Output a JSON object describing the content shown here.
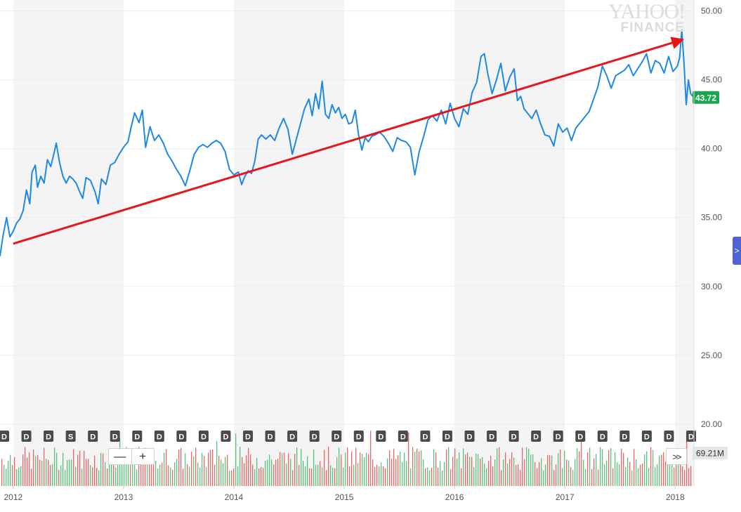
{
  "watermark": {
    "line1": "YAHOO!",
    "line2": "FINANCE"
  },
  "controls": {
    "zoom_out": "—",
    "zoom_in": "+",
    "scroll_right": ">>",
    "side_tab": ">"
  },
  "colors": {
    "price_line": "#1e88e5",
    "trend_arrow": "#e8161a",
    "last_price_badge": "#1ca550",
    "volume_up": "#3fb965",
    "volume_down": "#e84b4b",
    "event_marker": "#4a4a4a",
    "shade": "#f4f4f4",
    "grid": "#ebebeb",
    "axis_text": "#555555"
  },
  "chart_data": {
    "type": "line",
    "title": "",
    "xlabel": "",
    "ylabel": "",
    "xlim": [
      2011.88,
      2018.17
    ],
    "ylim": [
      15.5,
      50.8
    ],
    "x_ticks": [
      2012,
      2013,
      2014,
      2015,
      2016,
      2017,
      2018
    ],
    "x_tick_labels": [
      "2012",
      "2013",
      "2014",
      "2015",
      "2016",
      "2017",
      "2018"
    ],
    "y_ticks": [
      20,
      25,
      30,
      35,
      40,
      45,
      50
    ],
    "y_tick_labels": [
      "20.00",
      "25.00",
      "30.00",
      "35.00",
      "40.00",
      "45.00",
      "50.00"
    ],
    "grid": "horizontal",
    "series": [
      {
        "points": [
          [
            2011.88,
            32.2
          ],
          [
            2011.91,
            33.8
          ],
          [
            2011.94,
            35.0
          ],
          [
            2011.97,
            33.6
          ],
          [
            2012.0,
            34.0
          ],
          [
            2012.03,
            34.6
          ],
          [
            2012.06,
            34.9
          ],
          [
            2012.09,
            35.5
          ],
          [
            2012.12,
            37.0
          ],
          [
            2012.15,
            36.0
          ],
          [
            2012.17,
            38.3
          ],
          [
            2012.2,
            38.8
          ],
          [
            2012.22,
            37.2
          ],
          [
            2012.25,
            38.0
          ],
          [
            2012.28,
            37.5
          ],
          [
            2012.31,
            39.2
          ],
          [
            2012.34,
            38.7
          ],
          [
            2012.37,
            39.7
          ],
          [
            2012.39,
            40.4
          ],
          [
            2012.42,
            39.0
          ],
          [
            2012.45,
            38.0
          ],
          [
            2012.48,
            37.5
          ],
          [
            2012.51,
            38.0
          ],
          [
            2012.54,
            37.8
          ],
          [
            2012.57,
            37.5
          ],
          [
            2012.6,
            36.9
          ],
          [
            2012.63,
            36.4
          ],
          [
            2012.66,
            37.9
          ],
          [
            2012.7,
            37.7
          ],
          [
            2012.74,
            36.9
          ],
          [
            2012.77,
            36.0
          ],
          [
            2012.8,
            37.8
          ],
          [
            2012.84,
            37.4
          ],
          [
            2012.88,
            38.8
          ],
          [
            2012.92,
            39.0
          ],
          [
            2012.96,
            39.6
          ],
          [
            2013.0,
            40.1
          ],
          [
            2013.04,
            40.5
          ],
          [
            2013.07,
            41.6
          ],
          [
            2013.1,
            42.6
          ],
          [
            2013.14,
            41.9
          ],
          [
            2013.17,
            42.8
          ],
          [
            2013.2,
            40.1
          ],
          [
            2013.24,
            41.6
          ],
          [
            2013.28,
            40.6
          ],
          [
            2013.32,
            41.0
          ],
          [
            2013.36,
            40.4
          ],
          [
            2013.4,
            39.6
          ],
          [
            2013.44,
            39.1
          ],
          [
            2013.48,
            38.5
          ],
          [
            2013.52,
            38.0
          ],
          [
            2013.56,
            37.3
          ],
          [
            2013.6,
            38.4
          ],
          [
            2013.64,
            39.6
          ],
          [
            2013.68,
            40.1
          ],
          [
            2013.72,
            40.3
          ],
          [
            2013.76,
            40.1
          ],
          [
            2013.8,
            40.4
          ],
          [
            2013.84,
            40.6
          ],
          [
            2013.88,
            40.4
          ],
          [
            2013.92,
            39.8
          ],
          [
            2013.96,
            38.5
          ],
          [
            2014.0,
            38.1
          ],
          [
            2014.04,
            38.3
          ],
          [
            2014.07,
            37.4
          ],
          [
            2014.1,
            38.0
          ],
          [
            2014.13,
            38.4
          ],
          [
            2014.16,
            38.2
          ],
          [
            2014.19,
            39.1
          ],
          [
            2014.22,
            40.7
          ],
          [
            2014.25,
            41.0
          ],
          [
            2014.29,
            40.7
          ],
          [
            2014.33,
            41.0
          ],
          [
            2014.37,
            40.6
          ],
          [
            2014.41,
            41.5
          ],
          [
            2014.45,
            42.2
          ],
          [
            2014.49,
            41.4
          ],
          [
            2014.53,
            39.6
          ],
          [
            2014.57,
            40.8
          ],
          [
            2014.61,
            42.0
          ],
          [
            2014.64,
            42.9
          ],
          [
            2014.68,
            43.6
          ],
          [
            2014.71,
            42.4
          ],
          [
            2014.74,
            44.0
          ],
          [
            2014.77,
            42.9
          ],
          [
            2014.8,
            44.9
          ],
          [
            2014.83,
            42.5
          ],
          [
            2014.86,
            42.2
          ],
          [
            2014.89,
            43.2
          ],
          [
            2014.92,
            42.6
          ],
          [
            2014.95,
            43.0
          ],
          [
            2014.98,
            42.2
          ],
          [
            2015.01,
            42.5
          ],
          [
            2015.04,
            41.8
          ],
          [
            2015.07,
            41.9
          ],
          [
            2015.1,
            42.8
          ],
          [
            2015.13,
            41.0
          ],
          [
            2015.16,
            39.9
          ],
          [
            2015.19,
            40.8
          ],
          [
            2015.22,
            40.5
          ],
          [
            2015.25,
            40.9
          ],
          [
            2015.28,
            41.0
          ],
          [
            2015.32,
            41.2
          ],
          [
            2015.36,
            40.9
          ],
          [
            2015.4,
            40.4
          ],
          [
            2015.44,
            39.8
          ],
          [
            2015.48,
            40.8
          ],
          [
            2015.52,
            40.6
          ],
          [
            2015.56,
            40.5
          ],
          [
            2015.6,
            40.1
          ],
          [
            2015.64,
            38.1
          ],
          [
            2015.68,
            39.8
          ],
          [
            2015.72,
            40.9
          ],
          [
            2015.76,
            42.1
          ],
          [
            2015.8,
            42.4
          ],
          [
            2015.84,
            42.0
          ],
          [
            2015.88,
            42.8
          ],
          [
            2015.92,
            41.8
          ],
          [
            2015.96,
            43.3
          ],
          [
            2016.0,
            42.2
          ],
          [
            2016.04,
            41.6
          ],
          [
            2016.08,
            42.9
          ],
          [
            2016.12,
            42.5
          ],
          [
            2016.16,
            44.1
          ],
          [
            2016.2,
            44.8
          ],
          [
            2016.24,
            46.7
          ],
          [
            2016.27,
            46.9
          ],
          [
            2016.3,
            45.5
          ],
          [
            2016.34,
            44.0
          ],
          [
            2016.38,
            45.0
          ],
          [
            2016.42,
            46.2
          ],
          [
            2016.46,
            44.2
          ],
          [
            2016.5,
            45.2
          ],
          [
            2016.54,
            45.8
          ],
          [
            2016.57,
            43.5
          ],
          [
            2016.6,
            43.8
          ],
          [
            2016.63,
            42.9
          ],
          [
            2016.66,
            42.6
          ],
          [
            2016.7,
            42.2
          ],
          [
            2016.74,
            42.8
          ],
          [
            2016.78,
            41.8
          ],
          [
            2016.82,
            41.0
          ],
          [
            2016.86,
            40.9
          ],
          [
            2016.9,
            40.2
          ],
          [
            2016.94,
            41.8
          ],
          [
            2016.98,
            41.2
          ],
          [
            2017.02,
            41.5
          ],
          [
            2017.06,
            40.6
          ],
          [
            2017.1,
            41.5
          ],
          [
            2017.14,
            41.9
          ],
          [
            2017.18,
            42.3
          ],
          [
            2017.22,
            42.7
          ],
          [
            2017.26,
            43.6
          ],
          [
            2017.3,
            44.5
          ],
          [
            2017.34,
            46.0
          ],
          [
            2017.38,
            45.3
          ],
          [
            2017.42,
            44.4
          ],
          [
            2017.46,
            45.3
          ],
          [
            2017.5,
            45.5
          ],
          [
            2017.54,
            45.7
          ],
          [
            2017.58,
            46.1
          ],
          [
            2017.62,
            45.3
          ],
          [
            2017.66,
            45.8
          ],
          [
            2017.7,
            46.3
          ],
          [
            2017.74,
            46.9
          ],
          [
            2017.78,
            45.5
          ],
          [
            2017.82,
            46.4
          ],
          [
            2017.86,
            46.2
          ],
          [
            2017.9,
            45.5
          ],
          [
            2017.94,
            46.7
          ],
          [
            2017.98,
            45.6
          ],
          [
            2018.02,
            46.0
          ],
          [
            2018.04,
            46.6
          ],
          [
            2018.06,
            48.6
          ],
          [
            2018.08,
            46.2
          ],
          [
            2018.1,
            43.2
          ],
          [
            2018.12,
            45.0
          ],
          [
            2018.14,
            44.0
          ],
          [
            2018.17,
            43.72
          ]
        ]
      }
    ],
    "trend_arrow": {
      "from": [
        2012.0,
        33.1
      ],
      "to": [
        2018.06,
        47.9
      ]
    },
    "last_price": "43.72",
    "volume": {
      "last_label": "69.21M"
    },
    "event_markers": [
      "D",
      "D",
      "D",
      "S",
      "D",
      "D",
      "D",
      "D",
      "D",
      "D",
      "D",
      "D",
      "D",
      "D",
      "D",
      "D",
      "D",
      "D",
      "D",
      "D",
      "D",
      "D",
      "D",
      "D",
      "D",
      "D",
      "D",
      "D",
      "D",
      "D",
      "D",
      "D"
    ],
    "shaded_years": [
      2012,
      2014,
      2016,
      2018
    ]
  }
}
